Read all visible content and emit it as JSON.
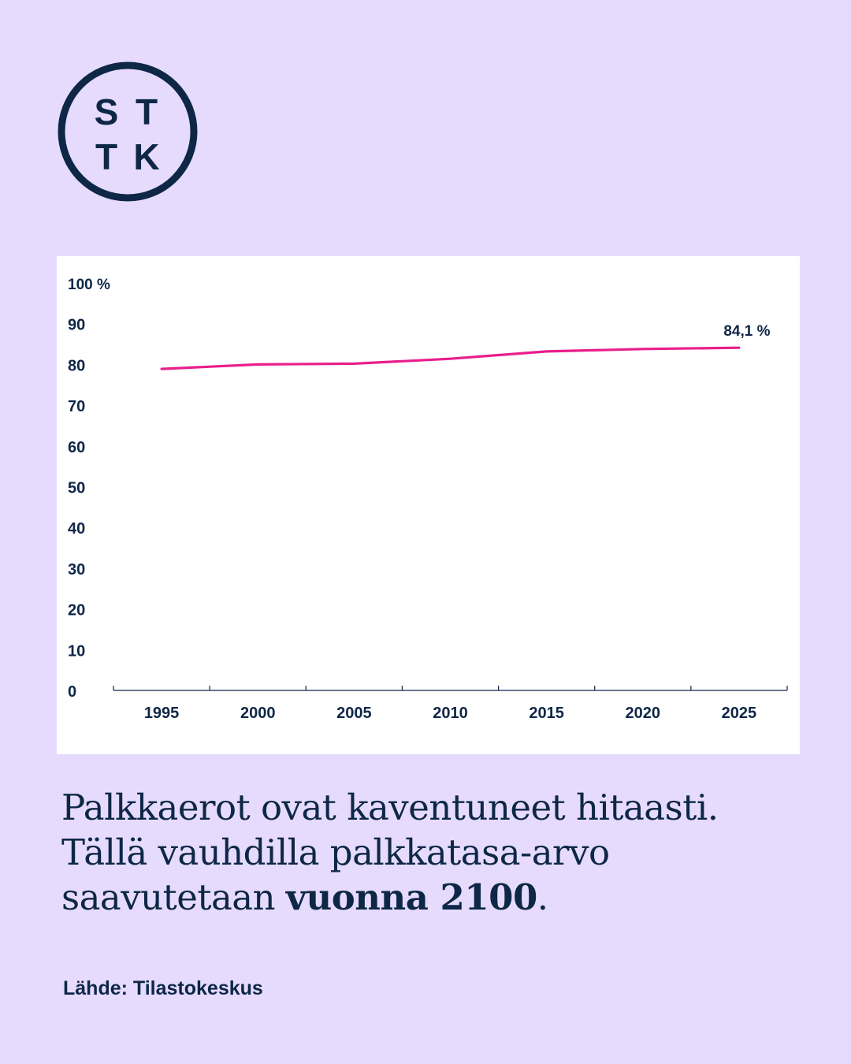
{
  "logo": {
    "letters": [
      "S",
      "T",
      "T",
      "K"
    ],
    "color": "#0e2747"
  },
  "colors": {
    "background": "#e6dbfd",
    "text": "#0e2747",
    "line": "#e91e8c",
    "card": "#ffffff"
  },
  "chart_data": {
    "type": "line",
    "x": [
      1995,
      2000,
      2005,
      2010,
      2015,
      2020,
      2025
    ],
    "y_tick_labels": [
      "0",
      "10",
      "20",
      "30",
      "40",
      "50",
      "60",
      "70",
      "80",
      "90",
      "100 %"
    ],
    "ylim": [
      0,
      100
    ],
    "xlim": [
      1992.5,
      2027.5
    ],
    "series": [
      {
        "points": [
          {
            "x": 1995,
            "y": 78.9
          },
          {
            "x": 2000,
            "y": 80.0
          },
          {
            "x": 2005,
            "y": 80.2
          },
          {
            "x": 2010,
            "y": 81.4
          },
          {
            "x": 2015,
            "y": 83.2
          },
          {
            "x": 2020,
            "y": 83.8
          },
          {
            "x": 2025,
            "y": 84.1
          }
        ],
        "color": "#e91e8c"
      }
    ],
    "annotations": [
      {
        "x": 2025,
        "y": 84.1,
        "text": "84,1 %"
      }
    ],
    "grid": false
  },
  "headline": {
    "line1": "Palkkaerot ovat kaventuneet hitaasti.",
    "line2": "Tällä vauhdilla palkkatasa-arvo",
    "line3_prefix": "saavutetaan ",
    "line3_bold": "vuonna 2100",
    "line3_suffix": "."
  },
  "source": "Lähde: Tilastokeskus"
}
